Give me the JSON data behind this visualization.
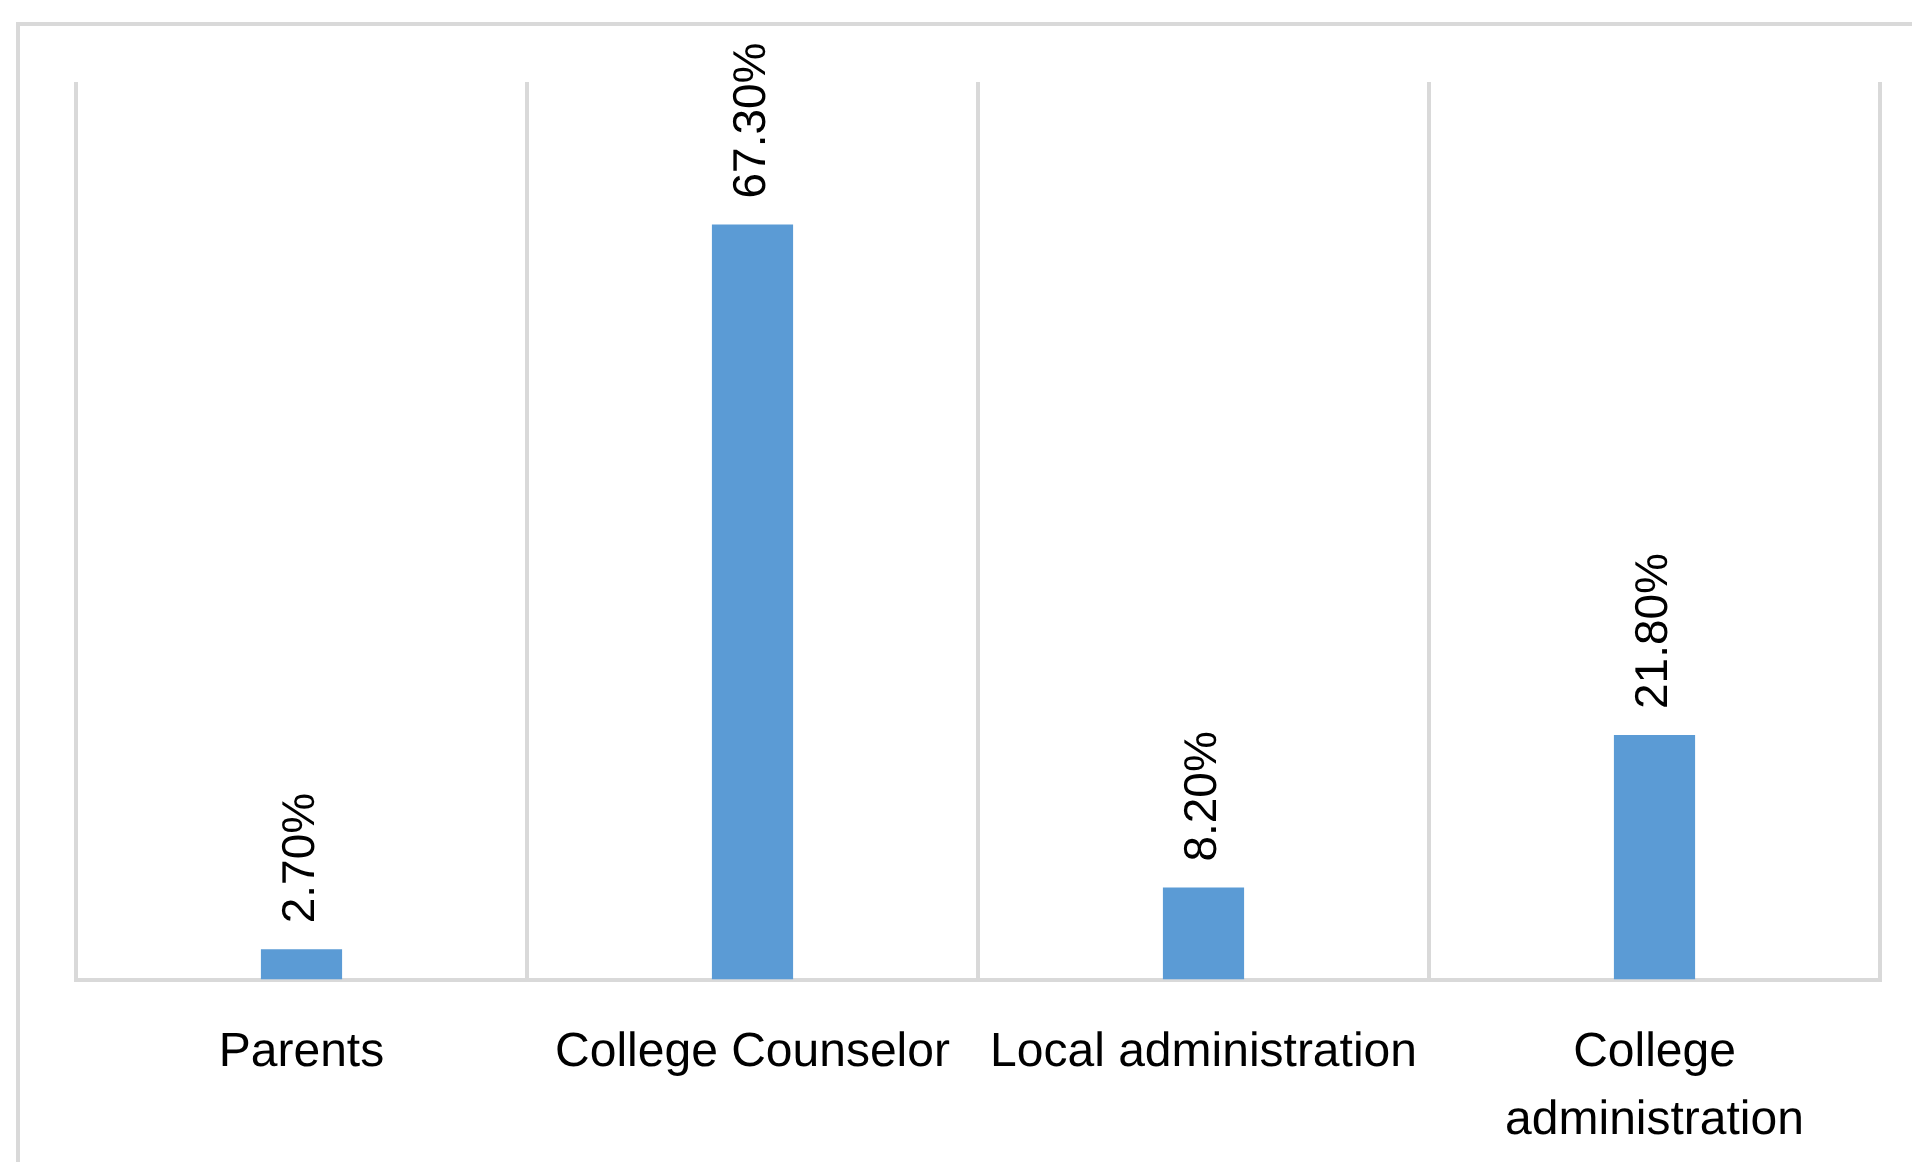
{
  "chart_data": {
    "type": "bar",
    "categories": [
      "Parents",
      "College Counselor",
      "Local administration",
      "College administration"
    ],
    "values": [
      2.7,
      67.3,
      8.2,
      21.8
    ],
    "value_labels": [
      "2.70%",
      "67.30%",
      "8.20%",
      "21.80%"
    ],
    "color": "#5b9bd5",
    "ylim": [
      0,
      80
    ],
    "grid": "x",
    "tick_labels": "x"
  }
}
